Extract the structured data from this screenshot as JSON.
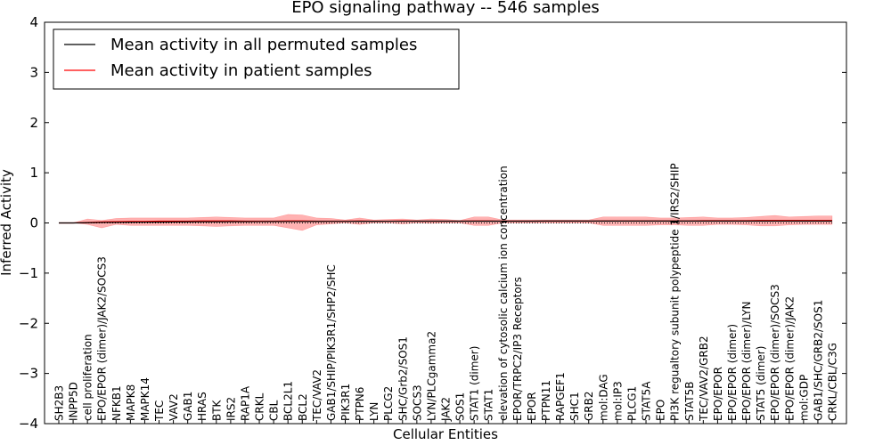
{
  "chart_data": {
    "type": "line",
    "title": "EPO signaling pathway -- 546 samples",
    "xlabel": "Cellular Entities",
    "ylabel": "Inferred Activity",
    "ylim": [
      -4,
      4
    ],
    "yticks": [
      -4,
      -3,
      -2,
      -1,
      0,
      1,
      2,
      3,
      4
    ],
    "ytick_labels": [
      "−4",
      "−3",
      "−2",
      "−1",
      "0",
      "1",
      "2",
      "3",
      "4"
    ],
    "grid": false,
    "legend_position": "top-left",
    "categories": [
      "SH2B3",
      "INPP5D",
      "cell proliferation",
      "EPO/EPOR (dimer)/JAK2/SOCS3",
      "NFKB1",
      "MAPK8",
      "MAPK14",
      "TEC",
      "VAV2",
      "GAB1",
      "HRAS",
      "BTK",
      "IRS2",
      "RAP1A",
      "CRKL",
      "CBL",
      "BCL2L1",
      "BCL2",
      "TEC/VAV2",
      "GAB1/SHIP/PIK3R1/SHP2/SHC",
      "PIK3R1",
      "PTPN6",
      "LYN",
      "PLCG2",
      "SHC/Grb2/SOS1",
      "SOCS3",
      "LYN/PLCgamma2",
      "JAK2",
      "SOS1",
      "STAT1 (dimer)",
      "STAT1",
      "elevation of cytosolic calcium ion concentration",
      "EPOR/TRPC2/IP3 Receptors",
      "EPOR",
      "PTPN11",
      "RAPGEF1",
      "SHC1",
      "GRB2",
      "mol:DAG",
      "mol:IP3",
      "PLCG1",
      "STAT5A",
      "EPO",
      "PI3K regualtory subunit polypeptide 1/IRS2/SHIP",
      "STAT5B",
      "TEC/VAV2/GRB2",
      "EPO/EPOR",
      "EPO/EPOR (dimer)",
      "EPO/EPOR (dimer)/LYN",
      "STAT5 (dimer)",
      "EPO/EPOR (dimer)/SOCS3",
      "EPO/EPOR (dimer)/JAK2",
      "mol:GDP",
      "GAB1/SHC/GRB2/SOS1",
      "CRKL/CBL/C3G"
    ],
    "series": [
      {
        "name": "Mean activity in all permuted samples",
        "color": "#000000",
        "values": [
          0.0,
          0.0,
          0.005,
          0.01,
          0.012,
          0.015,
          0.017,
          0.018,
          0.02,
          0.022,
          0.024,
          0.025,
          0.026,
          0.027,
          0.028,
          0.029,
          0.03,
          0.03,
          0.031,
          0.032,
          0.032,
          0.033,
          0.033,
          0.034,
          0.034,
          0.035,
          0.035,
          0.035,
          0.036,
          0.036,
          0.036,
          0.036,
          0.036,
          0.036,
          0.037,
          0.037,
          0.037,
          0.037,
          0.037,
          0.037,
          0.037,
          0.037,
          0.038,
          0.038,
          0.038,
          0.038,
          0.038,
          0.038,
          0.038,
          0.038,
          0.038,
          0.038,
          0.038,
          0.038,
          0.038
        ]
      },
      {
        "name": "Mean activity in patient samples",
        "color": "#ff0000",
        "values": [
          0.0,
          0.0,
          0.01,
          0.02,
          0.025,
          0.03,
          0.03,
          0.035,
          0.035,
          0.035,
          0.04,
          0.04,
          0.04,
          0.035,
          0.035,
          0.035,
          0.04,
          0.04,
          0.035,
          0.035,
          0.035,
          0.04,
          0.035,
          0.035,
          0.04,
          0.035,
          0.035,
          0.035,
          0.035,
          0.04,
          0.04,
          0.035,
          0.035,
          0.035,
          0.035,
          0.035,
          0.035,
          0.035,
          0.04,
          0.04,
          0.04,
          0.04,
          0.04,
          0.04,
          0.04,
          0.045,
          0.045,
          0.045,
          0.045,
          0.05,
          0.05,
          0.05,
          0.05,
          0.05,
          0.05
        ],
        "band_upper": [
          0.0,
          0.0,
          0.08,
          0.05,
          0.09,
          0.1,
          0.1,
          0.1,
          0.1,
          0.1,
          0.11,
          0.12,
          0.11,
          0.1,
          0.1,
          0.1,
          0.17,
          0.16,
          0.1,
          0.09,
          0.06,
          0.1,
          0.06,
          0.07,
          0.08,
          0.06,
          0.08,
          0.07,
          0.05,
          0.12,
          0.12,
          0.06,
          0.06,
          0.06,
          0.06,
          0.06,
          0.06,
          0.06,
          0.12,
          0.12,
          0.12,
          0.12,
          0.1,
          0.1,
          0.11,
          0.12,
          0.1,
          0.1,
          0.11,
          0.13,
          0.15,
          0.12,
          0.13,
          0.14,
          0.14
        ],
        "band_lower": [
          0.0,
          0.0,
          -0.03,
          -0.1,
          -0.03,
          -0.05,
          -0.05,
          -0.05,
          -0.05,
          -0.05,
          -0.06,
          -0.07,
          -0.06,
          -0.05,
          -0.05,
          -0.05,
          -0.1,
          -0.15,
          -0.04,
          -0.02,
          0.0,
          -0.03,
          0.0,
          0.0,
          -0.02,
          0.0,
          -0.01,
          0.0,
          0.0,
          -0.05,
          -0.05,
          0.0,
          0.0,
          0.0,
          0.0,
          0.0,
          0.0,
          0.0,
          -0.05,
          -0.05,
          -0.05,
          -0.05,
          -0.04,
          -0.04,
          -0.05,
          -0.05,
          -0.03,
          -0.03,
          -0.04,
          -0.06,
          -0.06,
          -0.04,
          -0.03,
          -0.03,
          -0.03
        ]
      }
    ],
    "baseline": {
      "value": 0,
      "style": "dotted",
      "color": "#000000"
    }
  }
}
